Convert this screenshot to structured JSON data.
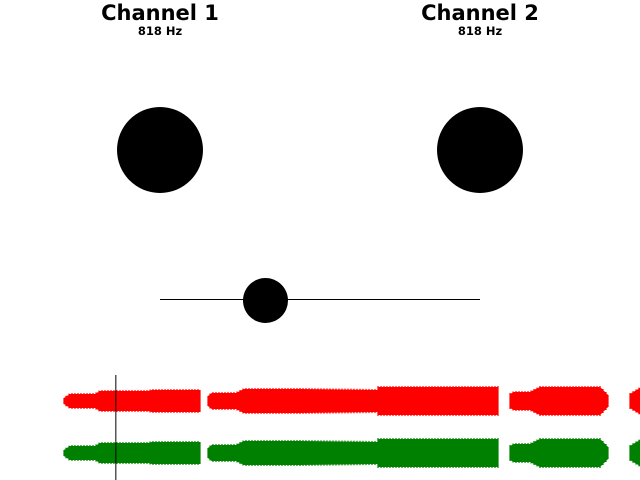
{
  "channels": [
    {
      "title": "Channel 1",
      "frequency": "818 Hz",
      "color": "#ff0000"
    },
    {
      "title": "Channel 2",
      "frequency": "818 Hz",
      "color": "#008000"
    }
  ],
  "balance": {
    "value": 0.33
  },
  "waveform": {
    "playhead_position": 0.181,
    "channel_1_color": "#ff0000",
    "channel_2_color": "#008000",
    "cursor_color": "#000000"
  }
}
